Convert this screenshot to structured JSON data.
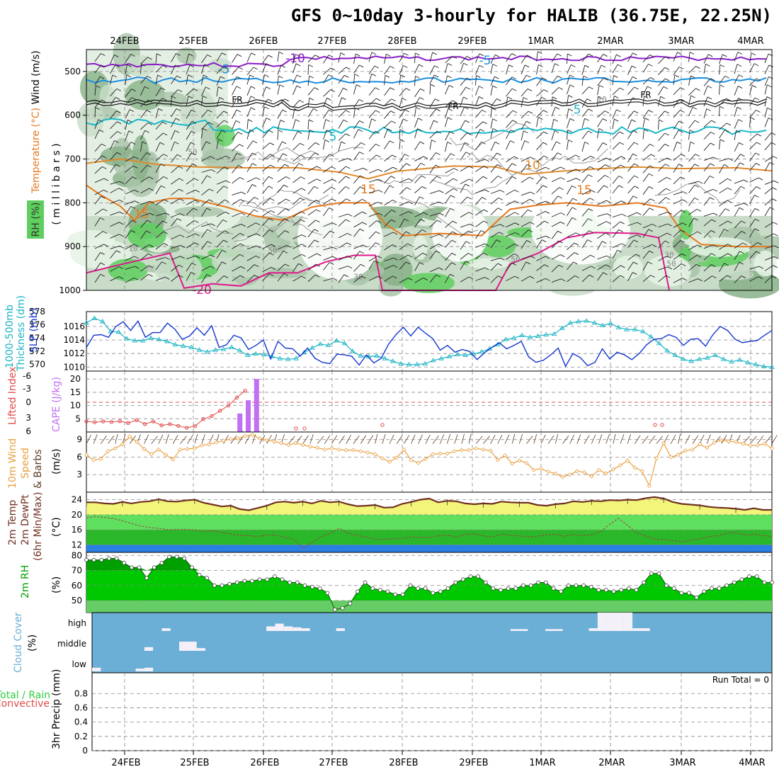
{
  "title": "GFS 0~10day 3-hourly for HALIB (36.75E, 22.25N)",
  "colors": {
    "purple": "#8a1ec8",
    "blue": "#1a8fe0",
    "cyan": "#18b8c8",
    "orange": "#e08a2c",
    "darkorange": "#e8781e",
    "magenta": "#e0188c",
    "green": "#2ecc40",
    "slp": "#1436d0",
    "thick": "#1ab4c4",
    "cape": "#c070f0",
    "li": "#e04a4a",
    "wind": "#e8a040",
    "cloud": "#6baed6"
  },
  "chart_data": [
    {
      "type": "contour",
      "panel": "upper-air",
      "ylabel_parts": [
        "RH (%)",
        "Temperature (°C)",
        "Wind (m/s)"
      ],
      "yunit": "( m i l l i b a r s )",
      "yticks": [
        500,
        600,
        700,
        800,
        900,
        1000
      ],
      "ylim": [
        450,
        1000
      ],
      "contour_labels": [
        "-10",
        "-5",
        "-5",
        "FR",
        "FR",
        "FR",
        "5",
        "5",
        "10",
        "15",
        "15",
        "-20"
      ],
      "rh_labels": [
        "50",
        "50",
        "50",
        "50",
        "10",
        "30",
        "30",
        "10"
      ]
    },
    {
      "type": "line",
      "panel": "slp-thickness",
      "ylabel_left": [
        "1000-500mb",
        "Thickness (dm)"
      ],
      "ylabel_right": "SLP (mb)",
      "left_ticks": [
        570,
        572,
        574,
        576,
        578
      ],
      "right_ticks": [
        1010,
        1012,
        1014,
        1016
      ],
      "slp_ylim": [
        1009.4,
        1018.2
      ],
      "thick_ylim": [
        569,
        578
      ],
      "series": [
        {
          "name": "SLP (mb)",
          "values": [
            1012.9,
            1014.7,
            1014.8,
            1014.4,
            1016.0,
            1016.7,
            1015.4,
            1016.8,
            1014.4,
            1015.1,
            1015.1,
            1016.5,
            1015.6,
            1014.1,
            1014.6,
            1015.8,
            1014.7,
            1016.1,
            1012.9,
            1013.3,
            1014.7,
            1014.3,
            1012.6,
            1013.2,
            1014.0,
            1011.2,
            1013.8,
            1012.8,
            1012.7,
            1011.6,
            1012.8,
            1011.3,
            1010.7,
            1010.5,
            1011.9,
            1011.8,
            1011.6,
            1010.3,
            1011.8,
            1010.6,
            1011.3,
            1013.4,
            1014.8,
            1015.9,
            1014.6,
            1015.9,
            1015.0,
            1014.2,
            1012.5,
            1013.2,
            1012.2,
            1012.6,
            1012.3,
            1011.1,
            1012.1,
            1012.9,
            1013.6,
            1012.7,
            1013.2,
            1013.8,
            1011.5,
            1010.7,
            1011.0,
            1011.8,
            1012.8,
            1010.1,
            1012.0,
            1011.4,
            1010.2,
            1010.7,
            1012.7,
            1011.2,
            1012.2,
            1011.8,
            1011.1,
            1012.0,
            1013.3,
            1014.1,
            1014.2,
            1014.8,
            1014.4,
            1013.2,
            1014.1,
            1014.2,
            1013.1,
            1014.8,
            1016.0,
            1015.4,
            1014.1,
            1013.6,
            1013.8,
            1013.9,
            1014.7,
            1015.4
          ]
        },
        {
          "name": "1000-500mb Thickness (dm)",
          "values": [
            576.3,
            577.0,
            576.5,
            575.0,
            574.9,
            573.9,
            573.6,
            573.6,
            574.0,
            573.8,
            573.5,
            573.0,
            572.8,
            572.6,
            572.2,
            571.9,
            572.2,
            572.3,
            572.6,
            572.1,
            571.4,
            571.6,
            571.5,
            571.2,
            570.9,
            570.8,
            570.9,
            571.8,
            572.5,
            573.1,
            572.9,
            573.6,
            573.2,
            572.0,
            571.3,
            571.2,
            571.3,
            570.9,
            570.5,
            570.1,
            570.0,
            570.0,
            570.1,
            570.6,
            570.9,
            571.2,
            571.5,
            571.4,
            571.6,
            571.9,
            572.4,
            573.0,
            573.8,
            574.0,
            574.4,
            574.1,
            574.3,
            574.5,
            574.6,
            575.5,
            576.3,
            576.5,
            576.6,
            576.3,
            575.9,
            576.2,
            575.6,
            575.3,
            575.3,
            575.0,
            574.2,
            573.2,
            572.1,
            571.4,
            570.8,
            570.5,
            570.8,
            571.0,
            571.4,
            570.8,
            570.4,
            570.7,
            570.3,
            570.0,
            569.7,
            569.6
          ]
        }
      ]
    },
    {
      "type": "bar+line",
      "panel": "cape-li",
      "ylabel_left": "Lifted Index",
      "ylabel_right": "CAPE (J/kg)",
      "li_ticks": [
        "-6",
        "-3",
        "0",
        "3",
        "6"
      ],
      "cape_ticks": [
        5,
        10,
        15,
        20
      ],
      "cape_ylim": [
        0,
        23
      ],
      "li_points": [
        [
          0,
          4.0
        ],
        [
          1,
          3.7
        ],
        [
          2,
          4.0
        ],
        [
          3,
          3.8
        ],
        [
          4,
          4.1
        ],
        [
          5,
          3.4
        ],
        [
          6,
          4.5
        ],
        [
          7,
          3.0
        ],
        [
          8,
          4.0
        ],
        [
          9,
          2.5
        ],
        [
          10,
          3.0
        ],
        [
          11,
          2.3
        ],
        [
          12,
          1.6
        ],
        [
          13,
          2.2
        ],
        [
          14,
          4.9
        ],
        [
          15,
          6.0
        ],
        [
          16,
          8.0
        ],
        [
          17,
          10.0
        ],
        [
          18,
          13.0
        ],
        [
          19,
          15.6
        ]
      ],
      "cape_bars": [
        [
          4,
          0.5
        ],
        [
          6,
          0.5
        ],
        [
          9,
          7.0
        ],
        [
          10,
          12.0
        ],
        [
          11,
          20.0
        ]
      ]
    },
    {
      "type": "line",
      "panel": "wind10m",
      "ylabel": "10m Wind Speed & Barbs",
      "yunit": "(m/s)",
      "yticks": [
        3,
        6,
        9
      ],
      "ylim": [
        0,
        10.3
      ],
      "values": [
        6.4,
        5.5,
        5.7,
        7.0,
        7.5,
        8.2,
        9.5,
        8.6,
        7.4,
        6.5,
        7.3,
        6.4,
        5.6,
        7.3,
        7.4,
        7.5,
        8.0,
        8.2,
        8.5,
        8.8,
        9.1,
        9.2,
        9.6,
        9.8,
        9.2,
        8.9,
        8.7,
        8.4,
        8.1,
        8.4,
        8.1,
        7.8,
        7.6,
        7.3,
        7.5,
        7.3,
        7.2,
        7.2,
        7.0,
        6.8,
        6.5,
        5.8,
        5.2,
        5.9,
        7.3,
        5.5,
        5.0,
        5.7,
        6.5,
        6.6,
        6.6,
        7.0,
        7.2,
        7.2,
        7.5,
        7.3,
        7.1,
        5.5,
        6.3,
        4.9,
        5.4,
        5.0,
        3.8,
        4.0,
        3.5,
        3.2,
        2.6,
        3.0,
        3.6,
        3.4,
        2.7,
        3.8,
        3.2,
        3.9,
        4.6,
        5.4,
        4.2,
        3.6,
        1.1,
        5.8,
        8.4,
        6.0,
        6.4,
        7.1,
        7.3,
        8.2,
        7.6,
        8.5,
        8.9,
        8.7,
        8.6,
        8.3,
        8.0,
        8.0,
        8.3,
        7.5
      ]
    },
    {
      "type": "area+line",
      "panel": "temp2m",
      "ylabel": "2m Temp",
      "ylabel2": "2m DewPt",
      "ylabel3": "(6hr Min/Max)",
      "yticks": [
        12,
        16,
        20,
        24
      ],
      "ylim": [
        10,
        26
      ],
      "temp": [
        23.3,
        23.3,
        23.0,
        22.9,
        23.4,
        23.0,
        23.4,
        23.6,
        24.1,
        23.6,
        23.5,
        23.8,
        24.0,
        23.2,
        22.7,
        22.2,
        22.4,
        21.5,
        21.2,
        21.8,
        22.4,
        23.3,
        23.5,
        23.2,
        23.5,
        23.0,
        23.7,
        23.3,
        23.5,
        22.8,
        22.3,
        22.4,
        22.6,
        21.9,
        22.0,
        22.9,
        23.4,
        24.0,
        24.3,
        23.3,
        23.7,
        23.6,
        23.0,
        22.8,
        23.0,
        22.9,
        23.5,
        23.3,
        23.2,
        23.2,
        22.6,
        22.4,
        22.8,
        23.0,
        23.6,
        23.4,
        23.7,
        23.6,
        23.9,
        23.8,
        24.0,
        23.9,
        24.4,
        24.7,
        24.3,
        23.4,
        22.9,
        22.7,
        22.5,
        22.1,
        21.9,
        21.8,
        21.6,
        21.3,
        21.7,
        21.3,
        21.3
      ],
      "dewpt": [
        19.2,
        19.5,
        19.3,
        19.0,
        18.4,
        17.7,
        17.0,
        16.6,
        16.4,
        16.0,
        16.1,
        16.1,
        16.0,
        15.6,
        15.7,
        15.3,
        14.9,
        14.5,
        14.5,
        14.2,
        14.6,
        14.6,
        14.0,
        13.5,
        11.1,
        12.6,
        14.2,
        15.0,
        16.4,
        15.1,
        14.5,
        14.1,
        13.5,
        13.5,
        13.6,
        13.7,
        14.1,
        14.0,
        14.0,
        14.4,
        14.6,
        14.1,
        14.8,
        14.9,
        14.4,
        14.1,
        14.9,
        14.5,
        14.4,
        14.1,
        14.3,
        14.7,
        14.8,
        14.3,
        14.8,
        14.4,
        14.7,
        15.5,
        17.4,
        19.1,
        17.2,
        15.2,
        14.4,
        13.5,
        13.4,
        13.1,
        12.8,
        13.2,
        13.6,
        14.2,
        14.4,
        15.1,
        15.3,
        14.6,
        14.8,
        14.5,
        14.2
      ]
    },
    {
      "type": "area",
      "panel": "rh2m",
      "ylabel": "2m RH",
      "yunit": "(%)",
      "yticks": [
        50,
        60,
        70,
        80
      ],
      "ylim": [
        42,
        82
      ],
      "values": [
        77,
        77,
        77,
        78,
        78,
        75,
        72,
        72,
        65,
        72,
        75,
        79,
        79,
        78,
        72,
        67,
        65,
        60,
        60,
        61,
        62,
        63,
        63,
        64,
        64,
        66,
        64,
        62,
        62,
        60,
        59,
        58,
        55,
        44,
        45,
        48,
        56,
        62,
        58,
        57,
        56,
        54,
        54,
        60,
        58,
        58,
        55,
        56,
        58,
        62,
        64,
        66,
        66,
        62,
        58,
        57,
        58,
        58,
        60,
        60,
        62,
        62,
        58,
        56,
        60,
        60,
        60,
        59,
        57,
        57,
        56,
        57,
        58,
        57,
        62,
        68,
        68,
        60,
        58,
        55,
        55,
        52,
        56,
        58,
        58,
        60,
        62,
        64,
        66,
        66,
        62,
        62
      ]
    },
    {
      "type": "bar",
      "panel": "cloud",
      "ylabel": "Cloud Cover",
      "yunit": "(%)",
      "levels": [
        "high",
        "middle",
        "low"
      ],
      "bars": [
        [
          0,
          2,
          1,
          0.2
        ],
        [
          5,
          2,
          1,
          0.15
        ],
        [
          6,
          2,
          1,
          0.2
        ],
        [
          6,
          1,
          1,
          0.2
        ],
        [
          8,
          0,
          1,
          0.15
        ],
        [
          10,
          1,
          1,
          0.15
        ],
        [
          10,
          1,
          2,
          0.5
        ],
        [
          11,
          1,
          2,
          0.15
        ],
        [
          17,
          1,
          0,
          0.2
        ],
        [
          20,
          0,
          1,
          0.25
        ],
        [
          21,
          0,
          1,
          0.4
        ],
        [
          22,
          0,
          1,
          0.25
        ],
        [
          23,
          0,
          1,
          0.2
        ],
        [
          24,
          0,
          1,
          0.15
        ],
        [
          28,
          0,
          1,
          0.15
        ],
        [
          48,
          0,
          2,
          0.1
        ],
        [
          52,
          0,
          2,
          0.1
        ],
        [
          57,
          0,
          3,
          0.15
        ],
        [
          58,
          0,
          1,
          1.0
        ],
        [
          59,
          0,
          2,
          1.0
        ],
        [
          60,
          0,
          1,
          1.0
        ],
        [
          61,
          0,
          1,
          1.0
        ],
        [
          62,
          0,
          2,
          0.15
        ]
      ]
    },
    {
      "type": "bar",
      "panel": "precip",
      "ylabel": "3hr Precip (mm)",
      "ylabel_top": "Total / Rain",
      "ylabel_conv": "Convective",
      "yticks": [
        "0",
        "0.2",
        "0.4",
        "0.6",
        "0.8"
      ],
      "ylim": [
        0,
        1
      ],
      "run_total": "Run Total = 0"
    }
  ],
  "dates": [
    "24FEB",
    "25FEB",
    "26FEB",
    "27FEB",
    "28FEB",
    "29FEB",
    "1MAR",
    "2MAR",
    "3MAR",
    "4MAR"
  ]
}
